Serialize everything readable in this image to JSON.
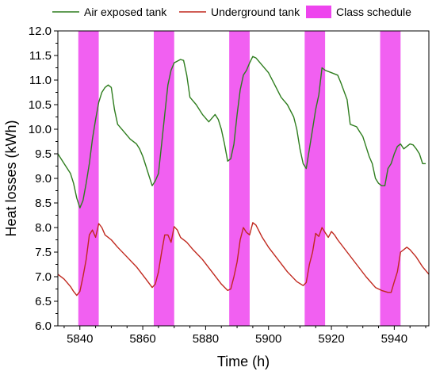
{
  "chart_data": {
    "type": "line",
    "xlabel": "Time (h)",
    "ylabel": "Heat losses (kWh)",
    "xlim": [
      5833,
      5951
    ],
    "ylim": [
      6.0,
      12.0
    ],
    "x_ticks": [
      5840,
      5860,
      5880,
      5900,
      5920,
      5940
    ],
    "y_ticks": [
      6.0,
      6.5,
      7.0,
      7.5,
      8.0,
      8.5,
      9.0,
      9.5,
      10.0,
      10.5,
      11.0,
      11.5,
      12.0
    ],
    "grid": false,
    "legend_position": "top",
    "class_schedule": {
      "name": "Class schedule",
      "color": "#ee44ee",
      "intervals": [
        [
          5839.5,
          5846
        ],
        [
          5863.5,
          5870
        ],
        [
          5887.5,
          5894
        ],
        [
          5911.5,
          5918
        ],
        [
          5935.5,
          5942
        ]
      ]
    },
    "series": [
      {
        "name": "Air exposed tank",
        "color": "#2e7d1e",
        "points": [
          [
            5833,
            9.5
          ],
          [
            5835,
            9.3
          ],
          [
            5837,
            9.1
          ],
          [
            5838,
            8.9
          ],
          [
            5839,
            8.6
          ],
          [
            5840,
            8.4
          ],
          [
            5841,
            8.55
          ],
          [
            5842,
            8.9
          ],
          [
            5843,
            9.3
          ],
          [
            5844,
            9.8
          ],
          [
            5845,
            10.2
          ],
          [
            5846,
            10.55
          ],
          [
            5847,
            10.75
          ],
          [
            5848,
            10.85
          ],
          [
            5849,
            10.9
          ],
          [
            5850,
            10.85
          ],
          [
            5851,
            10.4
          ],
          [
            5852,
            10.1
          ],
          [
            5854,
            9.95
          ],
          [
            5856,
            9.8
          ],
          [
            5858,
            9.7
          ],
          [
            5859,
            9.6
          ],
          [
            5860,
            9.45
          ],
          [
            5861,
            9.25
          ],
          [
            5862,
            9.05
          ],
          [
            5863,
            8.85
          ],
          [
            5864,
            8.95
          ],
          [
            5865,
            9.1
          ],
          [
            5866,
            9.7
          ],
          [
            5867,
            10.3
          ],
          [
            5868,
            10.9
          ],
          [
            5869,
            11.2
          ],
          [
            5870,
            11.35
          ],
          [
            5872,
            11.42
          ],
          [
            5873,
            11.4
          ],
          [
            5874,
            11.1
          ],
          [
            5875,
            10.65
          ],
          [
            5877,
            10.5
          ],
          [
            5879,
            10.3
          ],
          [
            5881,
            10.15
          ],
          [
            5883,
            10.3
          ],
          [
            5884,
            10.2
          ],
          [
            5885,
            10.0
          ],
          [
            5886,
            9.7
          ],
          [
            5887,
            9.35
          ],
          [
            5888,
            9.4
          ],
          [
            5889,
            9.7
          ],
          [
            5890,
            10.3
          ],
          [
            5891,
            10.8
          ],
          [
            5892,
            11.1
          ],
          [
            5893,
            11.2
          ],
          [
            5894,
            11.35
          ],
          [
            5895,
            11.48
          ],
          [
            5896,
            11.45
          ],
          [
            5898,
            11.3
          ],
          [
            5900,
            11.15
          ],
          [
            5902,
            10.9
          ],
          [
            5904,
            10.65
          ],
          [
            5906,
            10.5
          ],
          [
            5908,
            10.25
          ],
          [
            5909,
            10.0
          ],
          [
            5910,
            9.6
          ],
          [
            5911,
            9.3
          ],
          [
            5912,
            9.2
          ],
          [
            5913,
            9.6
          ],
          [
            5914,
            10.0
          ],
          [
            5915,
            10.4
          ],
          [
            5916,
            10.7
          ],
          [
            5917,
            11.25
          ],
          [
            5918,
            11.2
          ],
          [
            5920,
            11.15
          ],
          [
            5922,
            11.1
          ],
          [
            5923,
            10.95
          ],
          [
            5925,
            10.6
          ],
          [
            5926,
            10.1
          ],
          [
            5928,
            10.05
          ],
          [
            5929,
            9.95
          ],
          [
            5930,
            9.85
          ],
          [
            5931,
            9.65
          ],
          [
            5932,
            9.45
          ],
          [
            5933,
            9.3
          ],
          [
            5934,
            9.0
          ],
          [
            5935,
            8.9
          ],
          [
            5936,
            8.85
          ],
          [
            5937,
            8.85
          ],
          [
            5938,
            9.2
          ],
          [
            5939,
            9.3
          ],
          [
            5940,
            9.5
          ],
          [
            5941,
            9.65
          ],
          [
            5942,
            9.7
          ],
          [
            5943,
            9.6
          ],
          [
            5944,
            9.65
          ],
          [
            5945,
            9.7
          ],
          [
            5946,
            9.68
          ],
          [
            5947,
            9.6
          ],
          [
            5948,
            9.5
          ],
          [
            5949,
            9.3
          ],
          [
            5950,
            9.3
          ]
        ]
      },
      {
        "name": "Underground tank",
        "color": "#c0281e",
        "points": [
          [
            5833,
            7.05
          ],
          [
            5835,
            6.95
          ],
          [
            5837,
            6.8
          ],
          [
            5838,
            6.7
          ],
          [
            5839,
            6.62
          ],
          [
            5840,
            6.7
          ],
          [
            5841,
            7.0
          ],
          [
            5842,
            7.35
          ],
          [
            5843,
            7.85
          ],
          [
            5844,
            7.95
          ],
          [
            5845,
            7.8
          ],
          [
            5846,
            8.08
          ],
          [
            5847,
            8.0
          ],
          [
            5848,
            7.85
          ],
          [
            5850,
            7.75
          ],
          [
            5852,
            7.6
          ],
          [
            5855,
            7.4
          ],
          [
            5858,
            7.2
          ],
          [
            5861,
            6.95
          ],
          [
            5863,
            6.78
          ],
          [
            5864,
            6.85
          ],
          [
            5865,
            7.1
          ],
          [
            5866,
            7.5
          ],
          [
            5867,
            7.85
          ],
          [
            5868,
            7.85
          ],
          [
            5869,
            7.7
          ],
          [
            5870,
            8.02
          ],
          [
            5871,
            7.95
          ],
          [
            5872,
            7.8
          ],
          [
            5874,
            7.7
          ],
          [
            5876,
            7.55
          ],
          [
            5879,
            7.35
          ],
          [
            5882,
            7.1
          ],
          [
            5885,
            6.85
          ],
          [
            5887,
            6.72
          ],
          [
            5888,
            6.75
          ],
          [
            5889,
            7.0
          ],
          [
            5890,
            7.3
          ],
          [
            5891,
            7.75
          ],
          [
            5892,
            8.0
          ],
          [
            5893,
            7.9
          ],
          [
            5894,
            7.85
          ],
          [
            5895,
            8.1
          ],
          [
            5896,
            8.05
          ],
          [
            5898,
            7.8
          ],
          [
            5900,
            7.6
          ],
          [
            5903,
            7.35
          ],
          [
            5906,
            7.1
          ],
          [
            5909,
            6.9
          ],
          [
            5911,
            6.82
          ],
          [
            5912,
            6.88
          ],
          [
            5913,
            7.25
          ],
          [
            5914,
            7.5
          ],
          [
            5915,
            7.88
          ],
          [
            5916,
            7.82
          ],
          [
            5917,
            8.0
          ],
          [
            5918,
            7.9
          ],
          [
            5919,
            7.8
          ],
          [
            5920,
            7.92
          ],
          [
            5921,
            7.85
          ],
          [
            5922,
            7.75
          ],
          [
            5925,
            7.5
          ],
          [
            5928,
            7.25
          ],
          [
            5931,
            7.0
          ],
          [
            5934,
            6.78
          ],
          [
            5935,
            6.75
          ],
          [
            5936,
            6.72
          ],
          [
            5938,
            6.68
          ],
          [
            5939,
            6.68
          ],
          [
            5940,
            6.9
          ],
          [
            5941,
            7.1
          ],
          [
            5942,
            7.5
          ],
          [
            5943,
            7.55
          ],
          [
            5944,
            7.6
          ],
          [
            5945,
            7.55
          ],
          [
            5947,
            7.4
          ],
          [
            5949,
            7.2
          ],
          [
            5951,
            7.05
          ]
        ]
      }
    ]
  }
}
